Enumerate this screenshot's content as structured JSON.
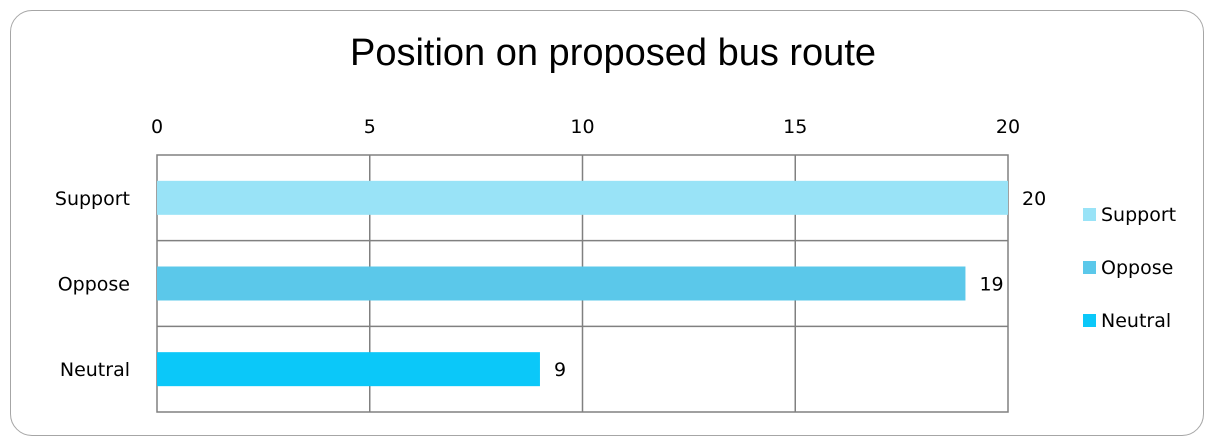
{
  "chart_data": {
    "type": "bar",
    "orientation": "horizontal",
    "title": "Position on proposed bus route",
    "xlabel": "",
    "ylabel": "",
    "categories": [
      "Support",
      "Oppose",
      "Neutral"
    ],
    "values": [
      20,
      19,
      9
    ],
    "data_labels": [
      "20",
      "19",
      "9"
    ],
    "xlim": [
      0,
      20
    ],
    "x_ticks": [
      "0",
      "5",
      "10",
      "15",
      "20"
    ],
    "x_axis_position": "top",
    "grid": true,
    "legend_position": "right",
    "legend": [
      "Support",
      "Oppose",
      "Neutral"
    ],
    "colors": [
      "#99e3f7",
      "#5bc8ea",
      "#0bc8f9"
    ]
  }
}
